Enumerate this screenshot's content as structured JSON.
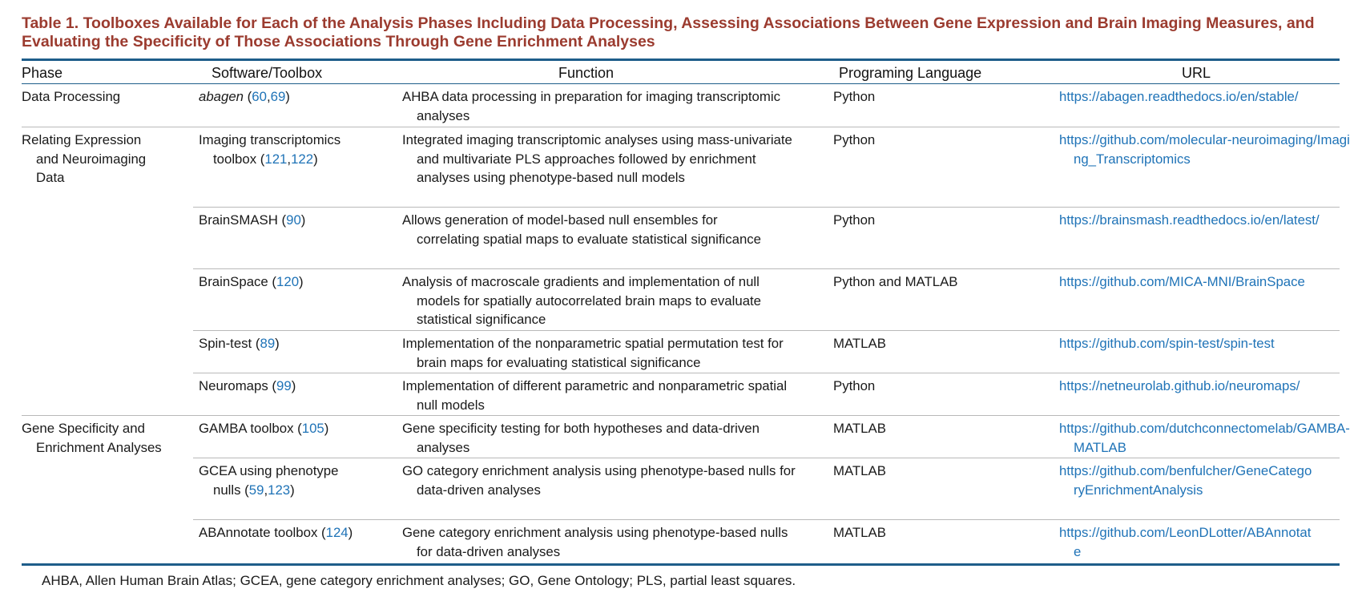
{
  "caption": "Table 1. Toolboxes Available for Each of the Analysis Phases Including Data Processing, Assessing Associations Between Gene Expression and Brain Imaging Measures, and Evaluating the Specificity of Those Associations Through Gene Enrichment Analyses",
  "headers": {
    "phase": "Phase",
    "software": "Software/Toolbox",
    "function": "Function",
    "language": "Programing Language",
    "url": "URL"
  },
  "phases": {
    "data_processing": "Data Processing",
    "relating": "Relating Expression and Neuroimaging Data",
    "gene_specificity": "Gene Specificity and Enrichment Analyses"
  },
  "rows": [
    {
      "software_name": "abagen",
      "software_refs": [
        "60",
        "69"
      ],
      "function": "AHBA data processing in preparation for imaging transcriptomic analyses",
      "language": "Python",
      "url": "https://abagen.readthedocs.io/en/stable/"
    },
    {
      "software_name": "Imaging transcriptomics toolbox",
      "software_refs": [
        "121",
        "122"
      ],
      "function": "Integrated imaging transcriptomic analyses using mass-univariate and multivariate PLS approaches followed by enrichment analyses using phenotype-based null models",
      "language": "Python",
      "url": "https://github.com/molecular-neuroimaging/Imaging_Transcriptomics"
    },
    {
      "software_name": "BrainSMASH",
      "software_refs": [
        "90"
      ],
      "function": "Allows generation of model-based null ensembles for correlating spatial maps to evaluate statistical significance",
      "language": "Python",
      "url": "https://brainsmash.readthedocs.io/en/latest/"
    },
    {
      "software_name": "BrainSpace",
      "software_refs": [
        "120"
      ],
      "function": "Analysis of macroscale gradients and implementation of null models for spatially autocorrelated brain maps to evaluate statistical significance",
      "language": "Python and MATLAB",
      "url": "https://github.com/MICA-MNI/BrainSpace"
    },
    {
      "software_name": "Spin-test",
      "software_refs": [
        "89"
      ],
      "function": "Implementation of the nonparametric spatial permutation test for brain maps for evaluating statistical significance",
      "language": "MATLAB",
      "url": "https://github.com/spin-test/spin-test"
    },
    {
      "software_name": "Neuromaps",
      "software_refs": [
        "99"
      ],
      "function": "Implementation of different parametric and nonparametric spatial null models",
      "language": "Python",
      "url": "https://netneurolab.github.io/neuromaps/"
    },
    {
      "software_name": "GAMBA toolbox",
      "software_refs": [
        "105"
      ],
      "function": "Gene specificity testing for both hypotheses and data-driven analyses",
      "language": "MATLAB",
      "url": "https://github.com/dutchconnectomelab/GAMBA-MATLAB"
    },
    {
      "software_name": "GCEA using phenotype nulls",
      "software_refs": [
        "59",
        "123"
      ],
      "function": "GO category enrichment analysis using phenotype-based nulls for data-driven analyses",
      "language": "MATLAB",
      "url": "https://github.com/benfulcher/GeneCategoryEnrichmentAnalysis"
    },
    {
      "software_name": "ABAnnotate toolbox",
      "software_refs": [
        "124"
      ],
      "function": "Gene category enrichment analysis using phenotype-based nulls for data-driven analyses",
      "language": "MATLAB",
      "url": "https://github.com/LeonDLotter/ABAnnotate"
    }
  ],
  "footnote": "AHBA, Allen Human Brain Atlas; GCEA, gene category enrichment analyses; GO, Gene Ontology; PLS, partial least squares."
}
